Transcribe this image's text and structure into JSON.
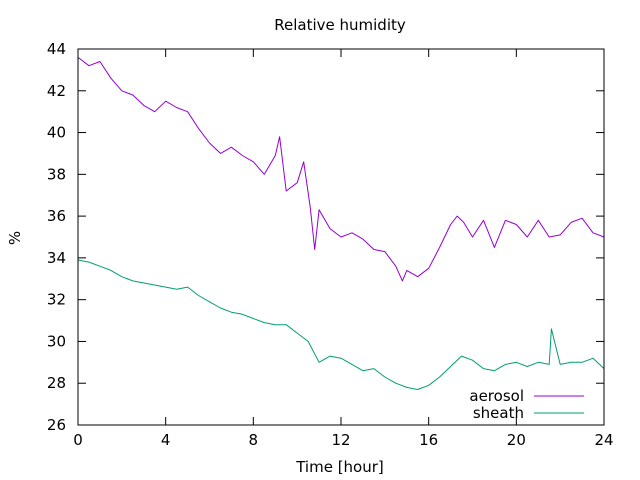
{
  "chart_data": {
    "type": "line",
    "title": "Relative humidity",
    "xlabel": "Time [hour]",
    "ylabel": "%",
    "xlim": [
      0,
      24
    ],
    "ylim": [
      26,
      44
    ],
    "x_ticks": [
      "0",
      "4",
      "8",
      "12",
      "16",
      "20",
      "24"
    ],
    "y_ticks": [
      "26",
      "28",
      "30",
      "32",
      "34",
      "36",
      "38",
      "40",
      "42",
      "44"
    ],
    "grid": false,
    "legend_position": "bottom-right",
    "series": [
      {
        "name": "aerosol",
        "color": "#9400d3",
        "x": [
          0,
          0.5,
          1,
          1.5,
          2,
          2.5,
          3,
          3.5,
          4,
          4.5,
          5,
          5.5,
          6,
          6.5,
          7,
          7.5,
          8,
          8.5,
          9,
          9.2,
          9.5,
          10,
          10.3,
          10.6,
          10.8,
          11,
          11.5,
          12,
          12.5,
          13,
          13.5,
          14,
          14.5,
          14.8,
          15,
          15.5,
          16,
          16.5,
          17,
          17.3,
          17.6,
          18,
          18.5,
          19,
          19.5,
          20,
          20.5,
          21,
          21.5,
          22,
          22.5,
          23,
          23.5,
          24
        ],
        "y": [
          43.6,
          43.2,
          43.4,
          42.6,
          42.0,
          41.8,
          41.3,
          41.0,
          41.5,
          41.2,
          41.0,
          40.2,
          39.5,
          39.0,
          39.3,
          38.9,
          38.6,
          38.0,
          38.9,
          39.8,
          37.2,
          37.6,
          38.6,
          36.4,
          34.4,
          36.3,
          35.4,
          35.0,
          35.2,
          34.9,
          34.4,
          34.3,
          33.6,
          32.9,
          33.4,
          33.1,
          33.5,
          34.5,
          35.6,
          36.0,
          35.7,
          35.0,
          35.8,
          34.5,
          35.8,
          35.6,
          35.0,
          35.8,
          35.0,
          35.1,
          35.7,
          35.9,
          35.2,
          35.0
        ]
      },
      {
        "name": "sheath",
        "color": "#009e73",
        "x": [
          0,
          0.5,
          1,
          1.5,
          2,
          2.5,
          3,
          3.5,
          4,
          4.5,
          5,
          5.5,
          6,
          6.5,
          7,
          7.5,
          8,
          8.5,
          9,
          9.5,
          10,
          10.5,
          11,
          11.5,
          12,
          12.5,
          13,
          13.5,
          14,
          14.5,
          15,
          15.5,
          16,
          16.5,
          17,
          17.5,
          18,
          18.5,
          19,
          19.5,
          20,
          20.5,
          21,
          21.5,
          21.6,
          22,
          22.5,
          23,
          23.5,
          24
        ],
        "y": [
          33.9,
          33.8,
          33.6,
          33.4,
          33.1,
          32.9,
          32.8,
          32.7,
          32.6,
          32.5,
          32.6,
          32.2,
          31.9,
          31.6,
          31.4,
          31.3,
          31.1,
          30.9,
          30.8,
          30.8,
          30.4,
          30.0,
          29.0,
          29.3,
          29.2,
          28.9,
          28.6,
          28.7,
          28.3,
          28.0,
          27.8,
          27.7,
          27.9,
          28.3,
          28.8,
          29.3,
          29.1,
          28.7,
          28.6,
          28.9,
          29.0,
          28.8,
          29.0,
          28.9,
          30.6,
          28.9,
          29.0,
          29.0,
          29.2,
          28.7
        ]
      }
    ]
  }
}
